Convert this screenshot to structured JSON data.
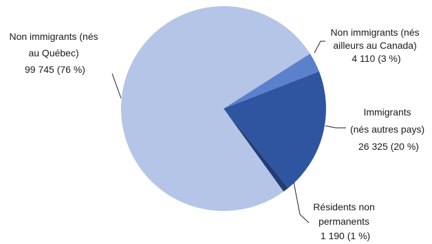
{
  "chart_data": {
    "type": "pie",
    "title": "",
    "slices": [
      {
        "label_lines": [
          "Non immigrants (nés",
          "ailleurs au Canada)",
          "4 110 (3 %)"
        ],
        "value": 4110,
        "percent": 3,
        "color": "#5b80cc"
      },
      {
        "label_lines": [
          "Immigrants",
          "(nés autres pays)",
          "26 325 (20 %)"
        ],
        "value": 26325,
        "percent": 20,
        "color": "#2f55a0"
      },
      {
        "label_lines": [
          "Résidents non",
          "permanents",
          "1 190 (1 %)"
        ],
        "value": 1190,
        "percent": 1,
        "color": "#223c75"
      },
      {
        "label_lines": [
          "Non immigrants (nés",
          "au Québec)",
          "99 745 (76 %)"
        ],
        "value": 99745,
        "percent": 76,
        "color": "#b5c5e7"
      }
    ]
  }
}
